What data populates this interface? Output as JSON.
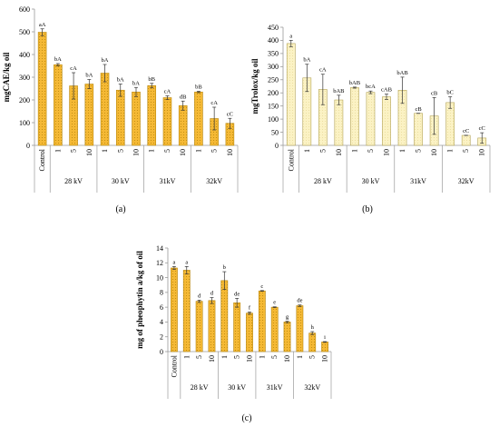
{
  "chart_data": [
    {
      "type": "bar",
      "panel_label": "(a)",
      "ylabel": "mgCAE/kg oil",
      "ylim": [
        0,
        600
      ],
      "yticks": [
        0,
        100,
        200,
        300,
        400,
        500,
        600
      ],
      "categories": [
        "Control",
        "1",
        "5",
        "10",
        "1",
        "5",
        "10",
        "1",
        "5",
        "10",
        "1",
        "5",
        "10"
      ],
      "groups": [
        {
          "label": "28 kV",
          "start": 1,
          "end": 3
        },
        {
          "label": "30 kV",
          "start": 4,
          "end": 6
        },
        {
          "label": "31kV",
          "start": 7,
          "end": 9
        },
        {
          "label": "32kV",
          "start": 10,
          "end": 12
        }
      ],
      "values": [
        498,
        355,
        262,
        270,
        318,
        243,
        235,
        263,
        210,
        175,
        235,
        118,
        97
      ],
      "errors": [
        15,
        5,
        58,
        20,
        38,
        27,
        20,
        10,
        8,
        20,
        3,
        50,
        22
      ],
      "labels": [
        "aA",
        "bA",
        "cA",
        "bA",
        "bA",
        "bA",
        "bA",
        "bB",
        "cA",
        "dB",
        "bB",
        "cA",
        "cC"
      ],
      "color": "#f5b935",
      "edge": "#b8860b"
    },
    {
      "type": "bar",
      "panel_label": "(b)",
      "ylabel": "mgTrolox/kg oil",
      "ylim": [
        0,
        450
      ],
      "yticks": [
        0,
        50,
        100,
        150,
        200,
        250,
        300,
        350,
        400,
        450
      ],
      "categories": [
        "Control",
        "1",
        "5",
        "10",
        "1",
        "5",
        "10",
        "1",
        "5",
        "10",
        "1",
        "5",
        "10"
      ],
      "groups": [
        {
          "label": "28 kV",
          "start": 1,
          "end": 3
        },
        {
          "label": "30 kV",
          "start": 4,
          "end": 6
        },
        {
          "label": "31kV",
          "start": 7,
          "end": 9
        },
        {
          "label": "32kV",
          "start": 10,
          "end": 12
        }
      ],
      "values": [
        388,
        257,
        213,
        173,
        220,
        202,
        185,
        210,
        122,
        112,
        163,
        38,
        28
      ],
      "errors": [
        12,
        52,
        58,
        18,
        2,
        5,
        10,
        50,
        0,
        70,
        22,
        0,
        20
      ],
      "labels": [
        "a",
        "bA",
        "cA",
        "bAB",
        "bAB",
        "bcA",
        "cAB",
        "bAB",
        "cB",
        "cB",
        "bC",
        "cC",
        "cC"
      ],
      "color": "#fbf2c4",
      "edge": "#b3a355"
    },
    {
      "type": "bar",
      "panel_label": "(c)",
      "ylabel": "mg of pheophytin a/kg of oil",
      "ylim": [
        0,
        14
      ],
      "yticks": [
        0,
        2,
        4,
        6,
        8,
        10,
        12,
        14
      ],
      "categories": [
        "Control",
        "1",
        "5",
        "10",
        "1",
        "5",
        "10",
        "1",
        "5",
        "10",
        "1",
        "5",
        "10"
      ],
      "groups": [
        {
          "label": "28 kV",
          "start": 1,
          "end": 3
        },
        {
          "label": "30 kV",
          "start": 4,
          "end": 6
        },
        {
          "label": "31kV",
          "start": 7,
          "end": 9
        },
        {
          "label": "32kV",
          "start": 10,
          "end": 12
        }
      ],
      "values": [
        11.3,
        11.0,
        6.8,
        6.9,
        9.6,
        6.6,
        5.2,
        8.2,
        6.0,
        4.0,
        6.2,
        2.5,
        1.3
      ],
      "errors": [
        0.2,
        0.5,
        0.15,
        0.4,
        1.2,
        0.6,
        0.15,
        0.05,
        0.05,
        0.1,
        0.1,
        0.2,
        0.05
      ],
      "labels": [
        "a",
        "a",
        "d",
        "d",
        "b",
        "de",
        "f",
        "c",
        "e",
        "g",
        "de",
        "h",
        "i"
      ],
      "color": "#f5b935",
      "edge": "#b8860b"
    }
  ]
}
